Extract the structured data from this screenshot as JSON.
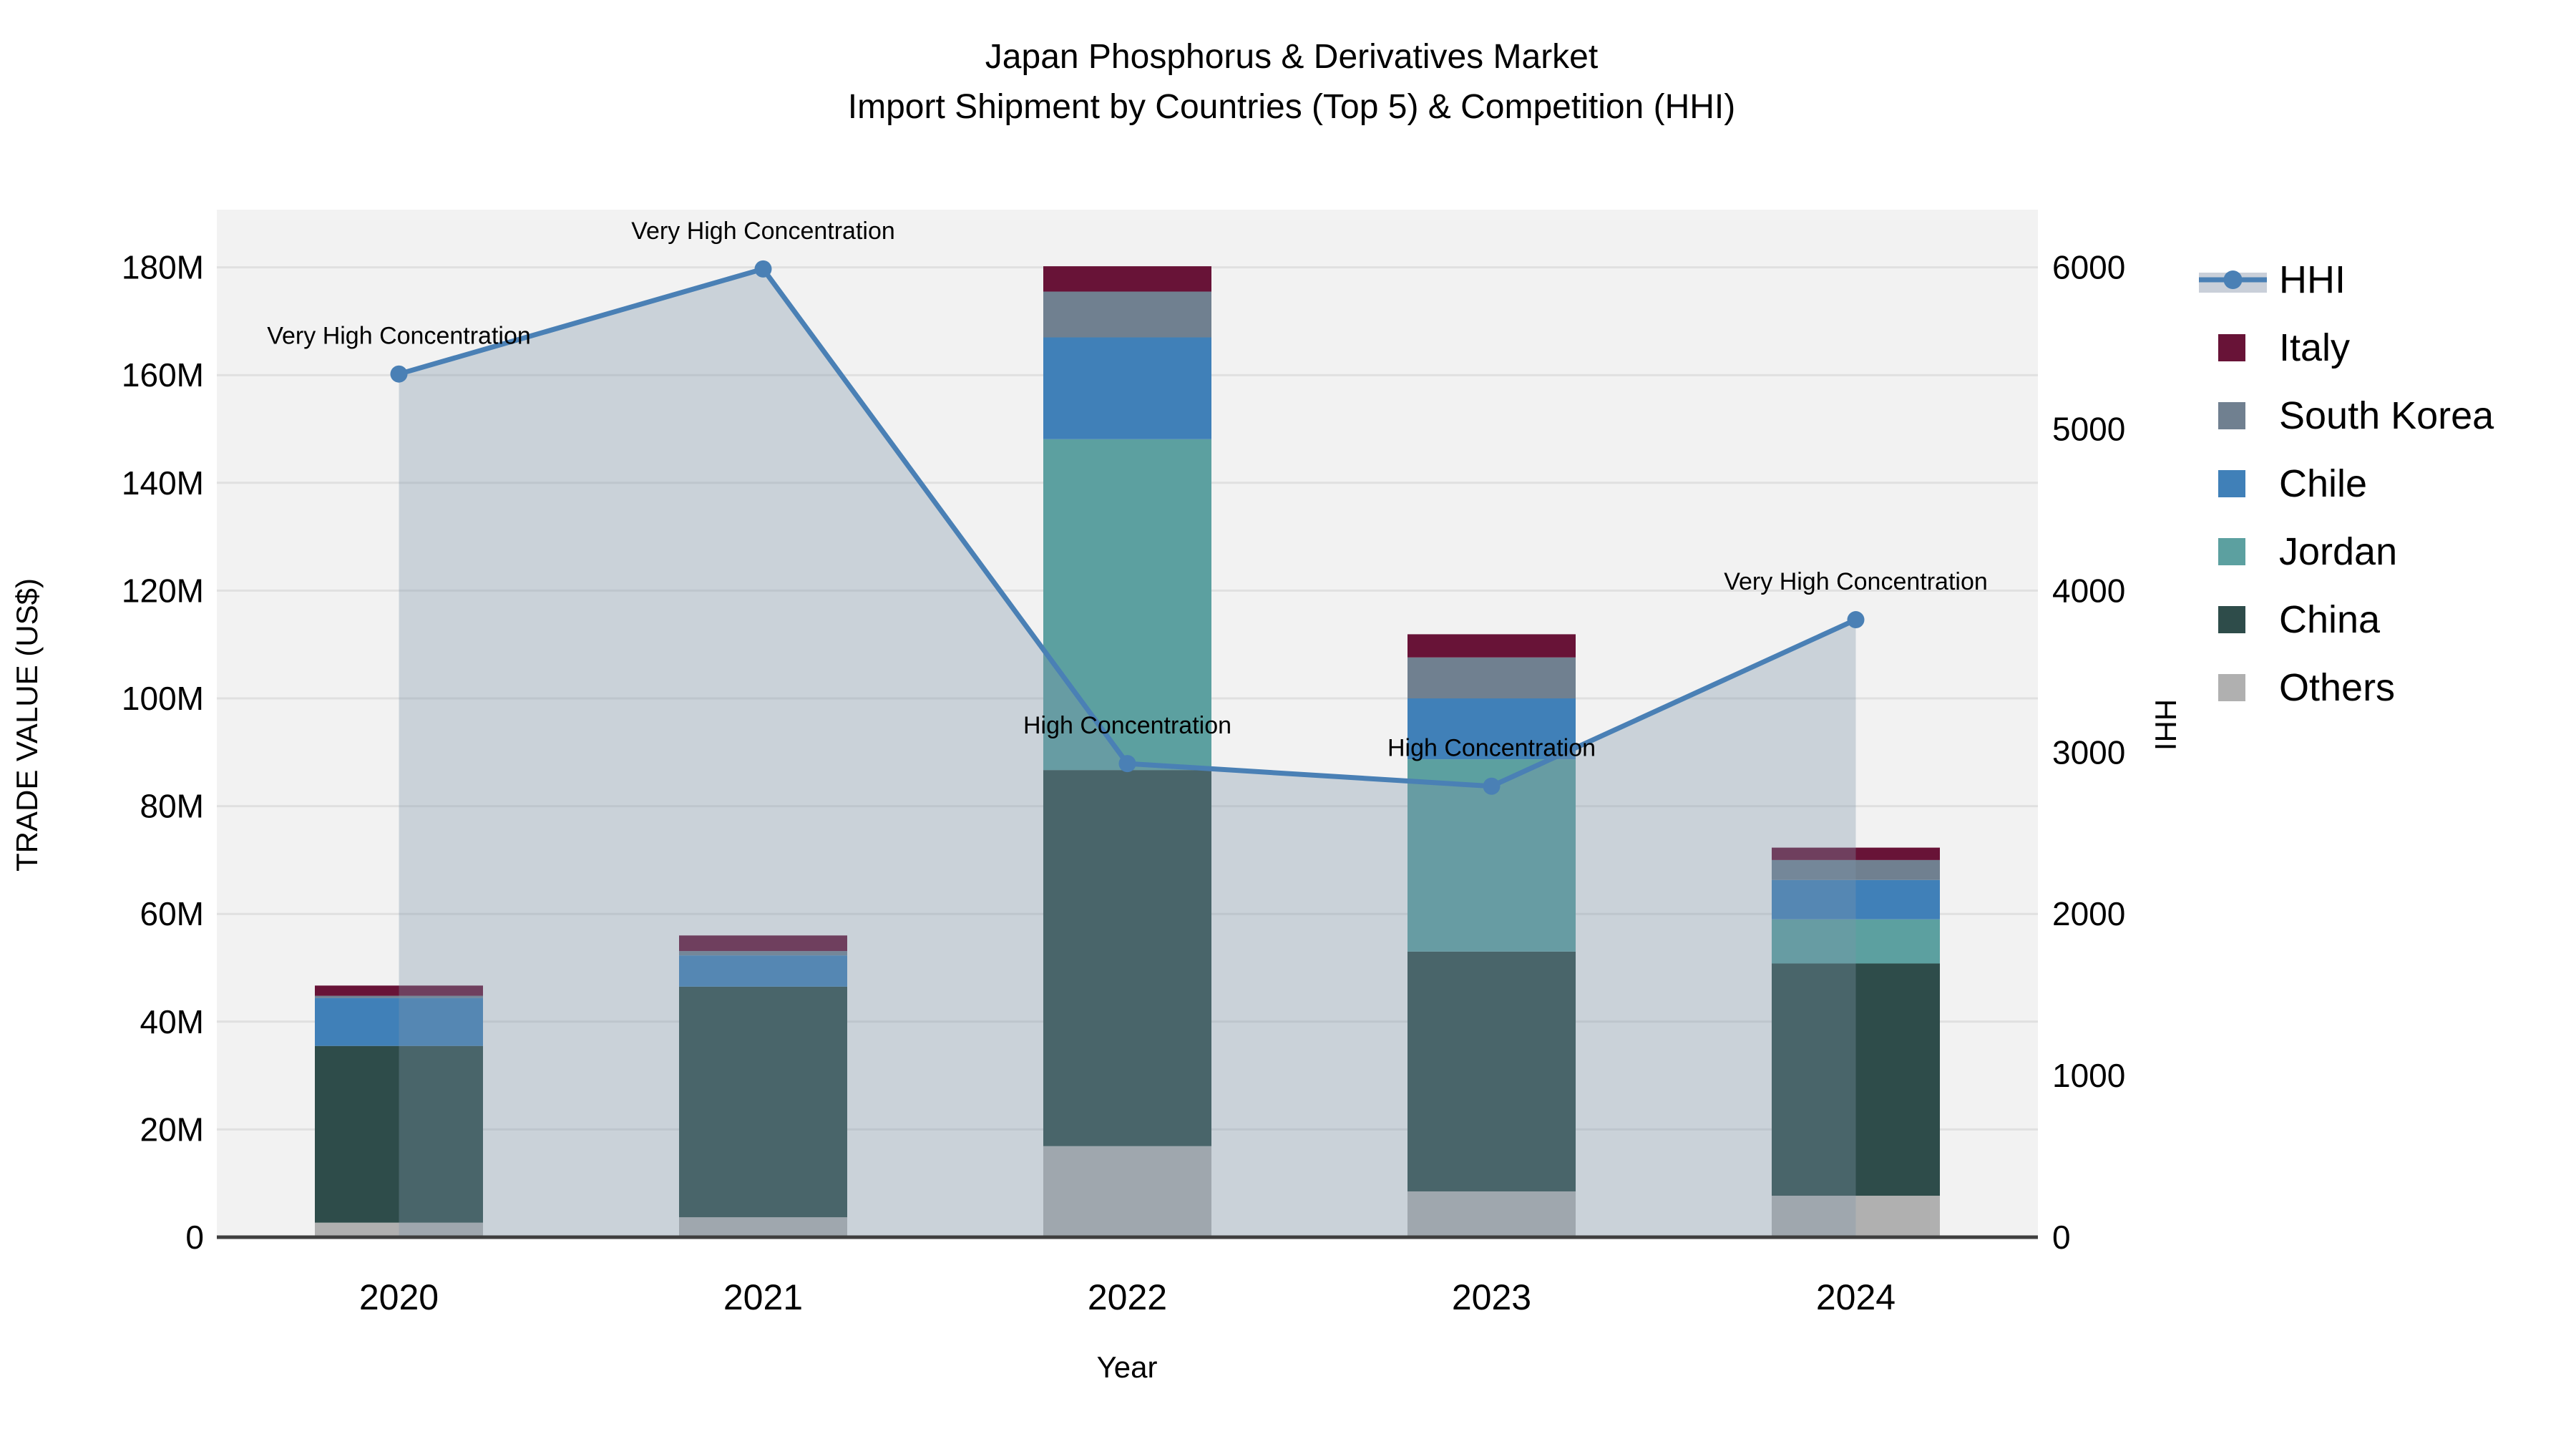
{
  "figure": {
    "title_line1": "Japan Phosphorus & Derivatives Market",
    "title_line2": "Import Shipment by Countries (Top 5) & Competition (HHI)",
    "x_axis_title": "Year",
    "y_left_axis_title": "TRADE VALUE (US$)",
    "y_right_axis_title": "HHI",
    "colors": {
      "plot_background": "#F2F2F2",
      "gridline": "#E0E0E0",
      "x_axis_line": "#3F3F3F",
      "hhi_line": "#4A80B5",
      "hhi_area_fill": "rgba(127,149,170,0.34)",
      "hhi_legend_band": "#C9CFD9"
    }
  },
  "chart_data": {
    "type": "bar+line (stacked bars, secondary-axis line with filled area)",
    "categories": [
      "2020",
      "2021",
      "2022",
      "2023",
      "2024"
    ],
    "bar_value_unit": "million US$",
    "stack_order_bottom_to_top": [
      "Others",
      "China",
      "Jordan",
      "Chile",
      "South Korea",
      "Italy"
    ],
    "series": [
      {
        "name": "Others",
        "color": "#B0B0B0",
        "values": [
          2.7,
          3.7,
          16.9,
          8.5,
          7.7
        ]
      },
      {
        "name": "China",
        "color": "#2E4C4A",
        "values": [
          32.8,
          42.8,
          69.8,
          44.5,
          43.1
        ]
      },
      {
        "name": "Jordan",
        "color": "#5CA0A0",
        "values": [
          0,
          0,
          61.4,
          35.7,
          8.2
        ]
      },
      {
        "name": "Chile",
        "color": "#4080B8",
        "values": [
          8.9,
          5.8,
          18.9,
          11.3,
          7.3
        ]
      },
      {
        "name": "South Korea",
        "color": "#708090",
        "values": [
          0.4,
          0.8,
          8.5,
          7.6,
          3.7
        ]
      },
      {
        "name": "Italy",
        "color": "#681337",
        "values": [
          1.9,
          2.9,
          4.7,
          4.3,
          2.3
        ]
      }
    ],
    "bar_totals": [
      46.7,
      56.0,
      180.2,
      111.9,
      72.3
    ],
    "line": {
      "name": "HHI",
      "values": [
        5340,
        5990,
        2930,
        2790,
        3820
      ]
    },
    "annotations": [
      {
        "category": "2020",
        "text": "Very High Concentration"
      },
      {
        "category": "2021",
        "text": "Very High Concentration"
      },
      {
        "category": "2022",
        "text": "High Concentration"
      },
      {
        "category": "2023",
        "text": "High Concentration"
      },
      {
        "category": "2024",
        "text": "Very High Concentration"
      }
    ],
    "y_left": {
      "tick_values": [
        0,
        20,
        40,
        60,
        80,
        100,
        120,
        140,
        160,
        180
      ],
      "tick_labels": [
        "0",
        "20M",
        "40M",
        "60M",
        "80M",
        "100M",
        "120M",
        "140M",
        "160M",
        "180M"
      ],
      "range": [
        0,
        191
      ]
    },
    "y_right": {
      "tick_values": [
        0,
        1000,
        2000,
        3000,
        4000,
        5000,
        6000
      ],
      "tick_labels": [
        "0",
        "1000",
        "2000",
        "3000",
        "4000",
        "5000",
        "6000"
      ],
      "range": [
        0,
        6360
      ]
    },
    "grid": "horizontal gridlines on",
    "legend_position": "right, vertical"
  },
  "legend": {
    "items": [
      {
        "label": "HHI",
        "swatch": "line"
      },
      {
        "label": "Italy",
        "swatch": "square"
      },
      {
        "label": "South Korea",
        "swatch": "square"
      },
      {
        "label": "Chile",
        "swatch": "square"
      },
      {
        "label": "Jordan",
        "swatch": "square"
      },
      {
        "label": "China",
        "swatch": "square"
      },
      {
        "label": "Others",
        "swatch": "square"
      }
    ]
  }
}
